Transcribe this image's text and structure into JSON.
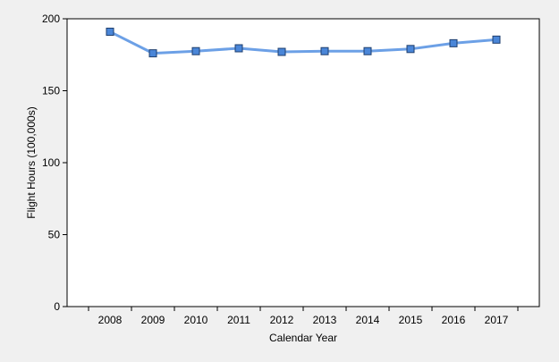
{
  "chart_data": {
    "type": "line",
    "title": "",
    "xlabel": "Calendar Year",
    "ylabel": "Flight Hours (100,000s)",
    "categories": [
      "2008",
      "2009",
      "2010",
      "2011",
      "2012",
      "2013",
      "2014",
      "2015",
      "2016",
      "2017"
    ],
    "series": [
      {
        "values": [
          191,
          176,
          177.5,
          179.5,
          177,
          177.5,
          177.5,
          179,
          183,
          185.5
        ],
        "color": "#6ca0e6",
        "marker": "square",
        "marker_color": "#4a86d8"
      }
    ],
    "ylim": [
      0,
      200
    ],
    "yticks": [
      0,
      50,
      100,
      150,
      200
    ],
    "grid": false,
    "legend": "none"
  }
}
